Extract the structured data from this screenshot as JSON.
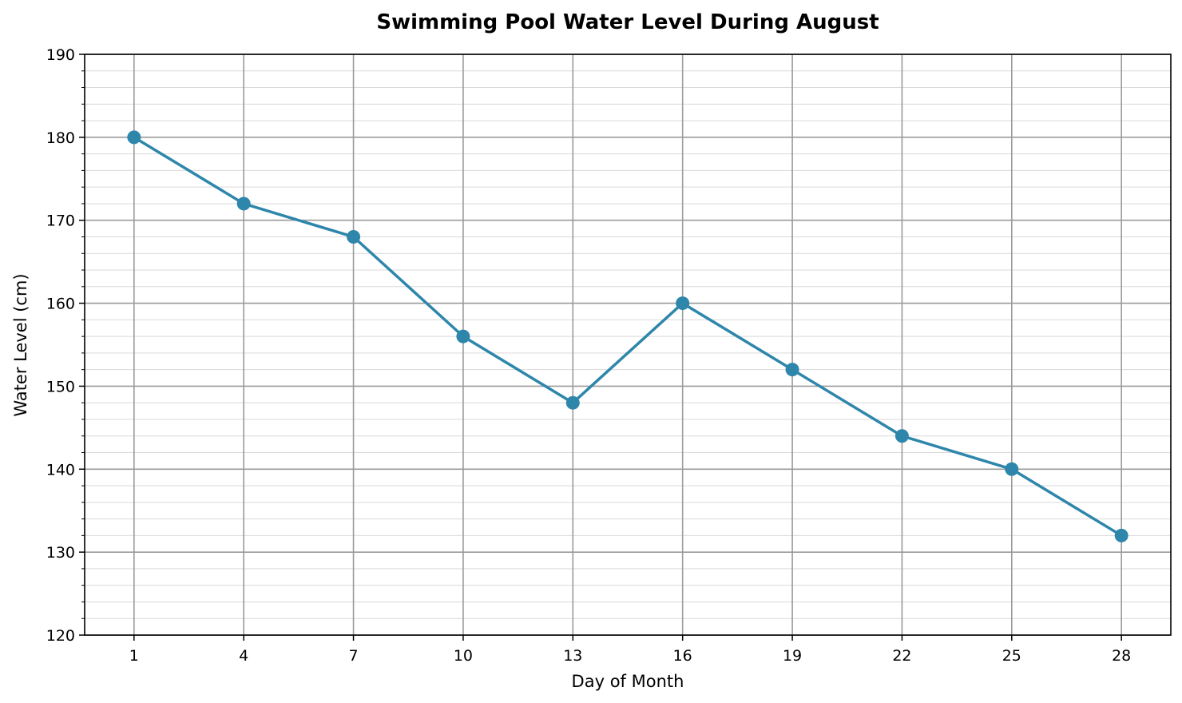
{
  "chart_data": {
    "type": "line",
    "title": "Swimming Pool Water Level During August",
    "xlabel": "Day of Month",
    "ylabel": "Water Level (cm)",
    "x": [
      1,
      4,
      7,
      10,
      13,
      16,
      19,
      22,
      25,
      28
    ],
    "values": [
      180,
      172,
      168,
      156,
      148,
      160,
      152,
      144,
      140,
      132
    ],
    "xticks": [
      1,
      4,
      7,
      10,
      13,
      16,
      19,
      22,
      25,
      28
    ],
    "yticks": [
      120,
      130,
      140,
      150,
      160,
      170,
      180,
      190
    ],
    "ylim": [
      120,
      190
    ],
    "xlim": [
      -0.35,
      29.35
    ],
    "y_minor_step": 2,
    "grid": true,
    "marker": "circle",
    "color": "#2e86ab"
  }
}
